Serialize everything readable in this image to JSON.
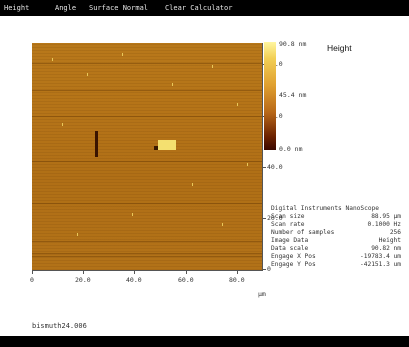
{
  "menu": [
    "Height",
    "Angle",
    "Surface Normal",
    "Clear Calculator"
  ],
  "colorbar": {
    "title": "Height",
    "max_label": "90.8 nm",
    "mid_label": "45.4 nm",
    "min_label": "0.0 nm"
  },
  "x_axis": {
    "ticks": [
      "0",
      "20.0",
      "40.0",
      "60.0",
      "80.0"
    ],
    "unit": "µm"
  },
  "y_axis": {
    "ticks": [
      "80.0",
      "60.0",
      "40.0",
      "20.0",
      "0"
    ]
  },
  "info": {
    "header": "Digital Instruments NanoScope",
    "rows": [
      {
        "k": "Scan size",
        "v": "88.95 µm"
      },
      {
        "k": "Scan rate",
        "v": "0.1000 Hz"
      },
      {
        "k": "Number of samples",
        "v": "256"
      },
      {
        "k": "Image Data",
        "v": "Height"
      },
      {
        "k": "Data scale",
        "v": "90.82 nm"
      },
      {
        "k": "Engage X Pos",
        "v": "-19783.4 um"
      },
      {
        "k": "Engage Y Pos",
        "v": "-42151.3 um"
      }
    ]
  },
  "filename": "bismuth24.006"
}
